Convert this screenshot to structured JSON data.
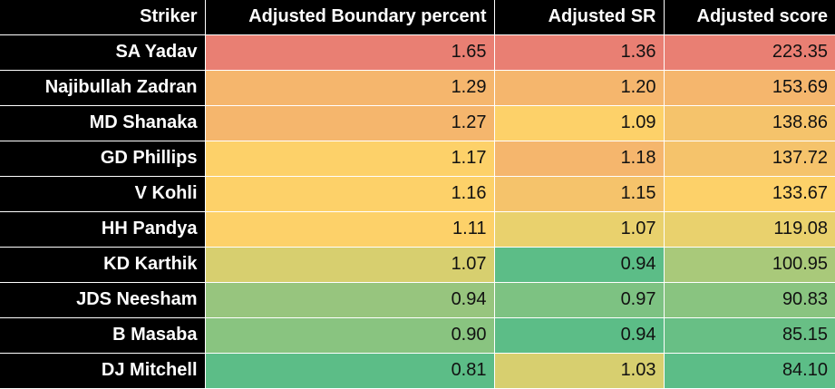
{
  "table": {
    "headers": [
      "Striker",
      "Adjusted Boundary percent",
      "Adjusted SR",
      "Adjusted score"
    ],
    "rows": [
      {
        "striker": "SA Yadav",
        "cells": [
          {
            "v": "1.65",
            "bg": "#e97f73"
          },
          {
            "v": "1.36",
            "bg": "#e97f73"
          },
          {
            "v": "223.35",
            "bg": "#e97f73"
          }
        ]
      },
      {
        "striker": "Najibullah Zadran",
        "cells": [
          {
            "v": "1.29",
            "bg": "#f5b66d"
          },
          {
            "v": "1.20",
            "bg": "#f5b66d"
          },
          {
            "v": "153.69",
            "bg": "#f5b66d"
          }
        ]
      },
      {
        "striker": "MD Shanaka",
        "cells": [
          {
            "v": "1.27",
            "bg": "#f5b66d"
          },
          {
            "v": "1.09",
            "bg": "#fdd169"
          },
          {
            "v": "138.86",
            "bg": "#f5c36b"
          }
        ]
      },
      {
        "striker": "GD Phillips",
        "cells": [
          {
            "v": "1.17",
            "bg": "#fdd169"
          },
          {
            "v": "1.18",
            "bg": "#f5b66d"
          },
          {
            "v": "137.72",
            "bg": "#f5c36b"
          }
        ]
      },
      {
        "striker": "V Kohli",
        "cells": [
          {
            "v": "1.16",
            "bg": "#fdd169"
          },
          {
            "v": "1.15",
            "bg": "#f5c36b"
          },
          {
            "v": "133.67",
            "bg": "#fdd169"
          }
        ]
      },
      {
        "striker": "HH Pandya",
        "cells": [
          {
            "v": "1.11",
            "bg": "#fdd169"
          },
          {
            "v": "1.07",
            "bg": "#e9d16d"
          },
          {
            "v": "119.08",
            "bg": "#e9d16d"
          }
        ]
      },
      {
        "striker": "KD Karthik",
        "cells": [
          {
            "v": "1.07",
            "bg": "#d7cf6f"
          },
          {
            "v": "0.94",
            "bg": "#5cbd87"
          },
          {
            "v": "100.95",
            "bg": "#a9c97a"
          }
        ]
      },
      {
        "striker": "JDS Neesham",
        "cells": [
          {
            "v": "0.94",
            "bg": "#97c57e"
          },
          {
            "v": "0.97",
            "bg": "#7dc282"
          },
          {
            "v": "90.83",
            "bg": "#89c480"
          }
        ]
      },
      {
        "striker": "B Masaba",
        "cells": [
          {
            "v": "0.90",
            "bg": "#89c480"
          },
          {
            "v": "0.94",
            "bg": "#5cbd87"
          },
          {
            "v": "85.15",
            "bg": "#68bf85"
          }
        ]
      },
      {
        "striker": "DJ Mitchell",
        "cells": [
          {
            "v": "0.81",
            "bg": "#5cbd87"
          },
          {
            "v": "1.03",
            "bg": "#d7cf6f"
          },
          {
            "v": "84.10",
            "bg": "#5cbd87"
          }
        ]
      }
    ]
  }
}
